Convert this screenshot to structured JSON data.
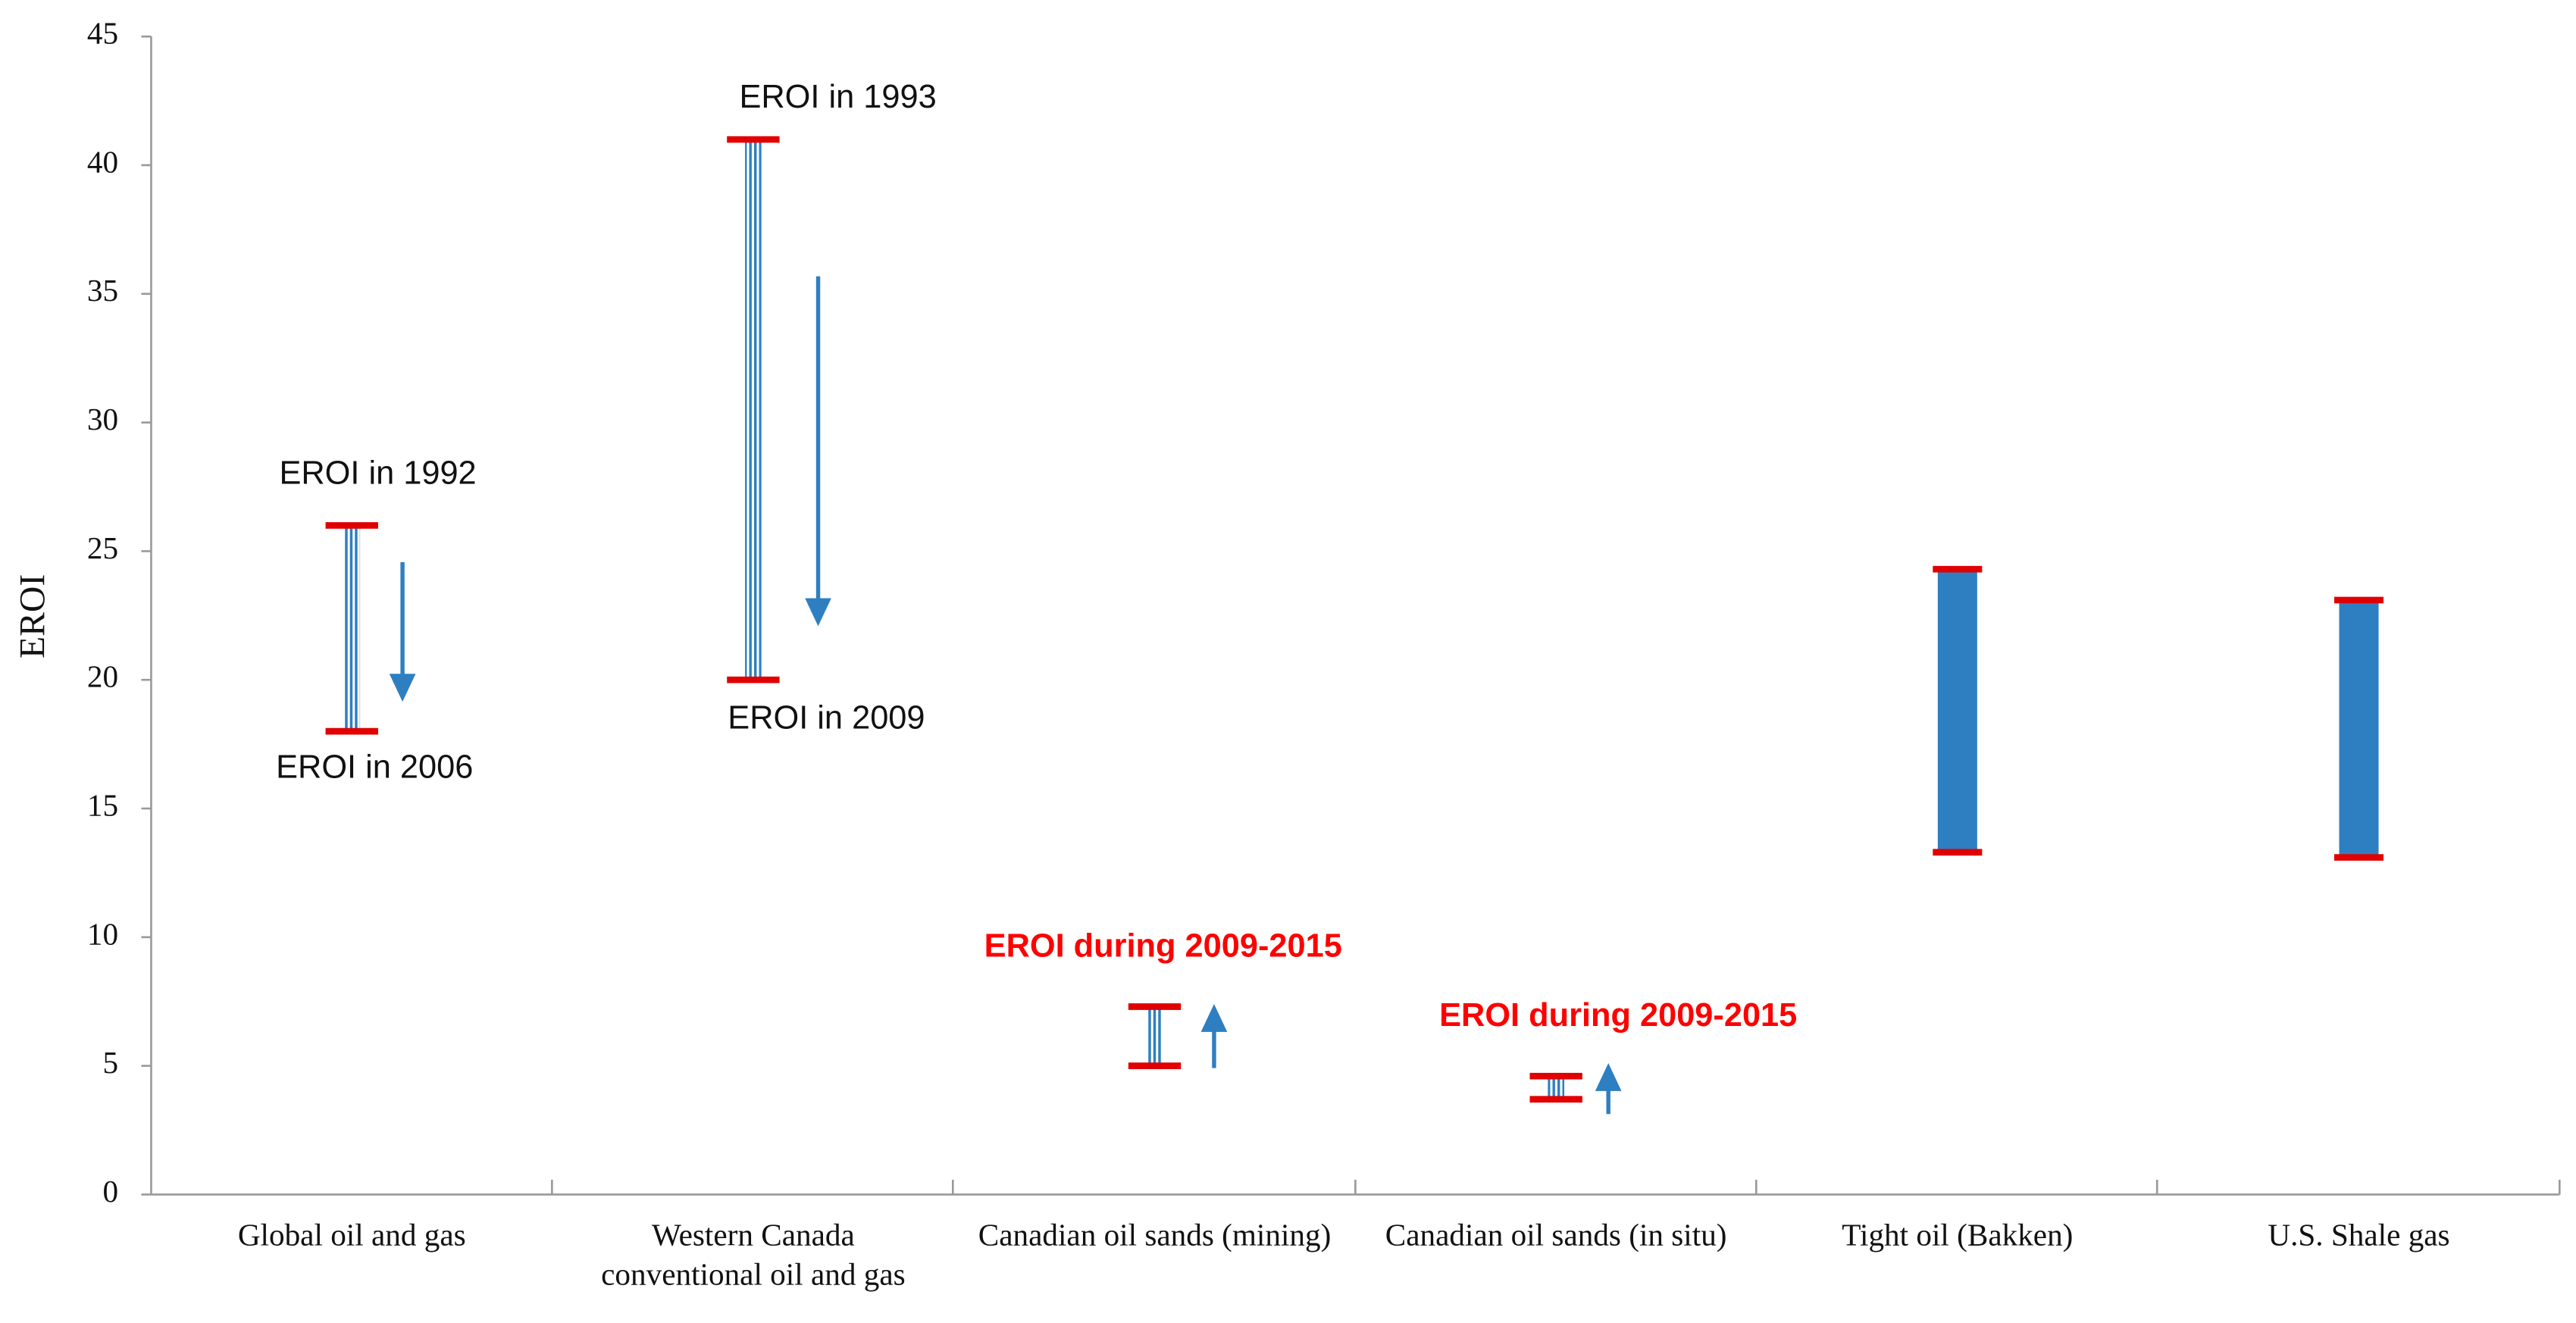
{
  "chart_data": {
    "type": "range",
    "y_label": "EROI",
    "categories": [
      "Global oil and gas",
      "Western Canada conventional oil and gas",
      "Canadian oil sands (mining)",
      "Canadian oil sands (in situ)",
      "Tight oil (Bakken)",
      "U.S. Shale gas"
    ],
    "low": [
      18,
      20,
      5,
      3.7,
      13.3,
      13.1
    ],
    "high": [
      26,
      41,
      7.3,
      4.6,
      24.3,
      23.1
    ],
    "styles": [
      "striped",
      "striped",
      "striped",
      "striped",
      "solid",
      "solid"
    ],
    "color": "#2e7fc1",
    "cap_color": "#e00000",
    "ylim": [
      0,
      45
    ],
    "yticks": [
      0,
      5,
      10,
      15,
      20,
      25,
      30,
      35,
      40,
      45
    ],
    "annotations": [
      "EROI in 1992",
      "EROI in 2006",
      "EROI in 1993",
      "EROI in 2009",
      "EROI during 2009-2015",
      "EROI during 2009-2015"
    ]
  }
}
